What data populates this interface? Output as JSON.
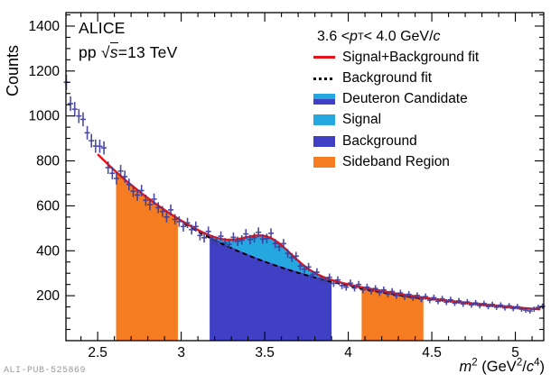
{
  "header": {
    "experiment": "ALICE",
    "collision_parts": {
      "pp": "pp ",
      "sqrt": "√",
      "s": "s",
      "rest": "=13 TeV"
    }
  },
  "watermark": "ALI-PUB-525869",
  "axes": {
    "y_title": "Counts",
    "x_title_parts": {
      "m": "m",
      "sup2a": "2",
      "mid": " (GeV",
      "sup2b": "2",
      "slash": "/",
      "c": "c",
      "sup4": "4",
      "close": ")"
    },
    "x_range": [
      2.31,
      5.17
    ],
    "y_range": [
      0,
      1460
    ],
    "x_tick_values": [
      2.5,
      3,
      3.5,
      4,
      4.5,
      5
    ],
    "x_tick_labels": [
      "2.5",
      "3",
      "3.5",
      "4",
      "4.5",
      "5"
    ],
    "y_tick_values": [
      200,
      400,
      600,
      800,
      1000,
      1200,
      1400
    ],
    "y_tick_labels": [
      "200",
      "400",
      "600",
      "800",
      "1000",
      "1200",
      "1400"
    ],
    "x_minor_step": 0.1,
    "y_minor_step": 50
  },
  "legend": {
    "title_parts": {
      "t0": "3.6 < ",
      "p": "p",
      "sub": "T",
      "t1": " < 4.0 GeV/",
      "c": "c"
    },
    "entries": [
      {
        "label": "Signal+Background fit",
        "marker": "line-red"
      },
      {
        "label": "Background fit",
        "marker": "line-dashed"
      },
      {
        "label": "Deuteron Candidate",
        "marker": "swatch-split"
      },
      {
        "label": "Signal",
        "marker": "swatch-signal"
      },
      {
        "label": "Background",
        "marker": "swatch-background"
      },
      {
        "label": "Sideband Region",
        "marker": "swatch-sideband"
      }
    ]
  },
  "colors": {
    "fit": "#e51319",
    "bg_fit": "#000000",
    "signal_fill": "#25a7e0",
    "background_fill": "#4040c4",
    "sideband_fill": "#f57c20",
    "marker": "#3c3c9c",
    "frame": "#000000",
    "watermark": "#9b9b9b"
  },
  "chart_data": {
    "type": "bar",
    "subtype": "histogram-with-fits",
    "title": "",
    "xlabel": "m^2 (GeV^2/c^4)",
    "ylabel": "Counts",
    "xlim": [
      2.31,
      5.17
    ],
    "ylim": [
      0,
      1460
    ],
    "bin_width": 0.025,
    "x_start": 2.3125,
    "x_step": 0.025,
    "counts": [
      1150,
      1055,
      1030,
      1000,
      985,
      925,
      890,
      866,
      865,
      858,
      770,
      745,
      722,
      755,
      730,
      695,
      665,
      648,
      668,
      625,
      605,
      630,
      592,
      575,
      550,
      582,
      540,
      530,
      508,
      524,
      494,
      508,
      468,
      458,
      486,
      448,
      442,
      465,
      436,
      428,
      460,
      442,
      448,
      475,
      450,
      458,
      482,
      452,
      455,
      478,
      432,
      418,
      432,
      388,
      370,
      376,
      332,
      318,
      328,
      294,
      305,
      275,
      268,
      282,
      255,
      270,
      245,
      238,
      256,
      234,
      250,
      226,
      238,
      220,
      232,
      214,
      226,
      207,
      219,
      200,
      212,
      195,
      206,
      190,
      201,
      185,
      196,
      180,
      191,
      175,
      186,
      171,
      182,
      167,
      177,
      163,
      172,
      159,
      168,
      156,
      165,
      152,
      161,
      149,
      158,
      146,
      155,
      143,
      151,
      140,
      136,
      132,
      140,
      148,
      153
    ],
    "errors_rule": "sqrt(counts)",
    "fit": {
      "model": "background_exponential_plus_gaussian",
      "bg_const": 90,
      "bg_amp": 9477,
      "bg_slope": 1.02,
      "sig_amp": 110,
      "sig_mean": 3.52,
      "sig_sigma": 0.14,
      "fit_range": [
        2.5,
        5.15
      ],
      "bg_range": [
        3.02,
        4.45
      ]
    },
    "regions": {
      "sideband_left": [
        2.61,
        2.98
      ],
      "signal_window": [
        3.17,
        3.9
      ],
      "sideband_right": [
        4.08,
        4.45
      ]
    },
    "legend_position": "top-right",
    "grid": false
  }
}
